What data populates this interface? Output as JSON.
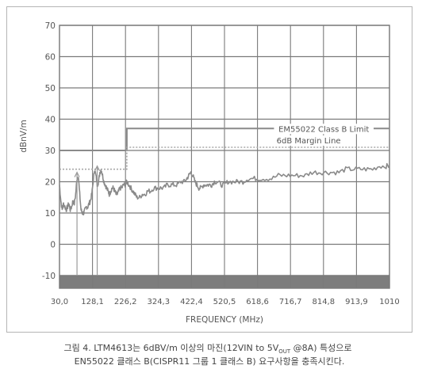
{
  "chart_data": {
    "type": "line",
    "xlabel": "FREQUENCY (MHz)",
    "ylabel": "dBnV/m",
    "x_ticks": [
      "30,0",
      "128,1",
      "226,2",
      "324,3",
      "422,4",
      "520,5",
      "618,6",
      "716,7",
      "814,8",
      "913,9",
      "1010"
    ],
    "y_ticks": [
      "70",
      "60",
      "50",
      "40",
      "30",
      "20",
      "10",
      "0",
      "-10"
    ],
    "xlim": [
      30,
      1010
    ],
    "ylim": [
      -14,
      70
    ],
    "grid": true,
    "series": [
      {
        "name": "EM55022 Class B Limit",
        "x": [
          30,
          230,
          230,
          1010
        ],
        "y": [
          30,
          30,
          37,
          37
        ]
      },
      {
        "name": "6dB Margin Line",
        "x": [
          30,
          230,
          230,
          1010
        ],
        "y": [
          24,
          24,
          31,
          31
        ]
      },
      {
        "name": "",
        "x": [
          30,
          34,
          38,
          42,
          46,
          50,
          54,
          58,
          62,
          66,
          70,
          74,
          78,
          82,
          86,
          90,
          94,
          98,
          102,
          106,
          110,
          114,
          118,
          122,
          126,
          130,
          134,
          138,
          142,
          146,
          150,
          154,
          158,
          162,
          166,
          170,
          174,
          178,
          182,
          186,
          190,
          194,
          198,
          202,
          206,
          210,
          215,
          220,
          225,
          230,
          236,
          242,
          248,
          254,
          260,
          268,
          276,
          284,
          292,
          300,
          310,
          320,
          330,
          340,
          350,
          360,
          370,
          380,
          390,
          400,
          408,
          414,
          420,
          426,
          432,
          438,
          444,
          450,
          458,
          466,
          474,
          482,
          490,
          500,
          510,
          520,
          530,
          545,
          560,
          575,
          590,
          605,
          620,
          640,
          660,
          680,
          700,
          720,
          740,
          760,
          780,
          800,
          820,
          840,
          860,
          880,
          900,
          920,
          940,
          960,
          980,
          1000,
          1010
        ],
        "y": [
          19,
          14,
          11,
          13,
          12,
          11,
          12,
          13,
          11,
          12,
          14,
          13,
          16,
          21,
          22,
          16,
          11,
          10,
          10,
          11,
          12,
          12,
          13,
          14,
          16,
          20,
          24,
          22,
          19,
          20,
          23,
          24,
          22,
          20,
          19,
          18,
          17,
          16,
          17,
          18,
          18,
          17,
          16,
          16,
          17,
          18,
          18,
          19,
          19,
          20,
          19,
          18,
          17,
          16,
          15,
          15,
          16,
          16,
          17,
          17,
          18,
          18,
          18,
          18,
          19,
          19,
          19,
          19,
          20,
          20,
          21,
          22,
          23,
          22,
          20,
          19,
          18,
          18,
          19,
          19,
          19,
          19,
          20,
          20,
          19,
          19,
          20,
          20,
          20,
          20,
          21,
          21,
          21,
          21,
          21,
          22,
          22,
          22,
          22,
          22,
          23,
          23,
          23,
          23,
          23,
          24,
          24,
          24,
          24,
          24,
          25,
          25,
          25
        ]
      }
    ],
    "annotations": [
      "EM55022 Class B Limit",
      "6dB Margin Line"
    ]
  },
  "caption": {
    "line1_a": "그림 4. LTM4613는 6dBV/m 이상의 마진(12VIN to 5V",
    "line1_sub": "OUT",
    "line1_b": " @8A) 특성으로",
    "line2": "EN55022 클래스 B(CISPR11 그룹 1 클래스 B) 요구사항을 충족시킨다."
  },
  "colors": {
    "grid": "#7a7a7a",
    "trace": "#8a8a8a",
    "limit": "#8a8a8a",
    "margin": "#a8a8a8",
    "floor_band": "#7d7d7d",
    "text": "#555555"
  }
}
